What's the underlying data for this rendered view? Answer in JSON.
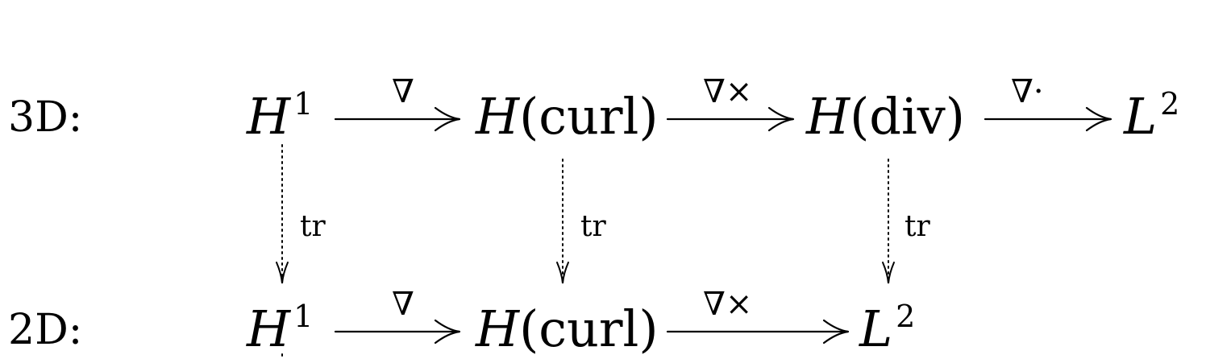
{
  "rows": {
    "row3d": {
      "label": "3D:",
      "spaces": [
        {
          "base": "H",
          "sup": "1",
          "paren": ""
        },
        {
          "base": "H",
          "sup": "",
          "paren": "(curl)"
        },
        {
          "base": "H",
          "sup": "",
          "paren": "(div)"
        },
        {
          "base": "L",
          "sup": "2",
          "paren": ""
        }
      ],
      "operators": [
        "∇",
        "∇×",
        "∇·"
      ]
    },
    "row2d": {
      "label": "2D:",
      "spaces": [
        {
          "base": "H",
          "sup": "1",
          "paren": ""
        },
        {
          "base": "H",
          "sup": "",
          "paren": "(curl)"
        },
        {
          "base": "L",
          "sup": "2",
          "paren": ""
        }
      ],
      "operators": [
        "∇",
        "∇×"
      ]
    }
  },
  "trace_label": "tr",
  "colors": {
    "ink": "#000000",
    "background": "#ffffff"
  }
}
